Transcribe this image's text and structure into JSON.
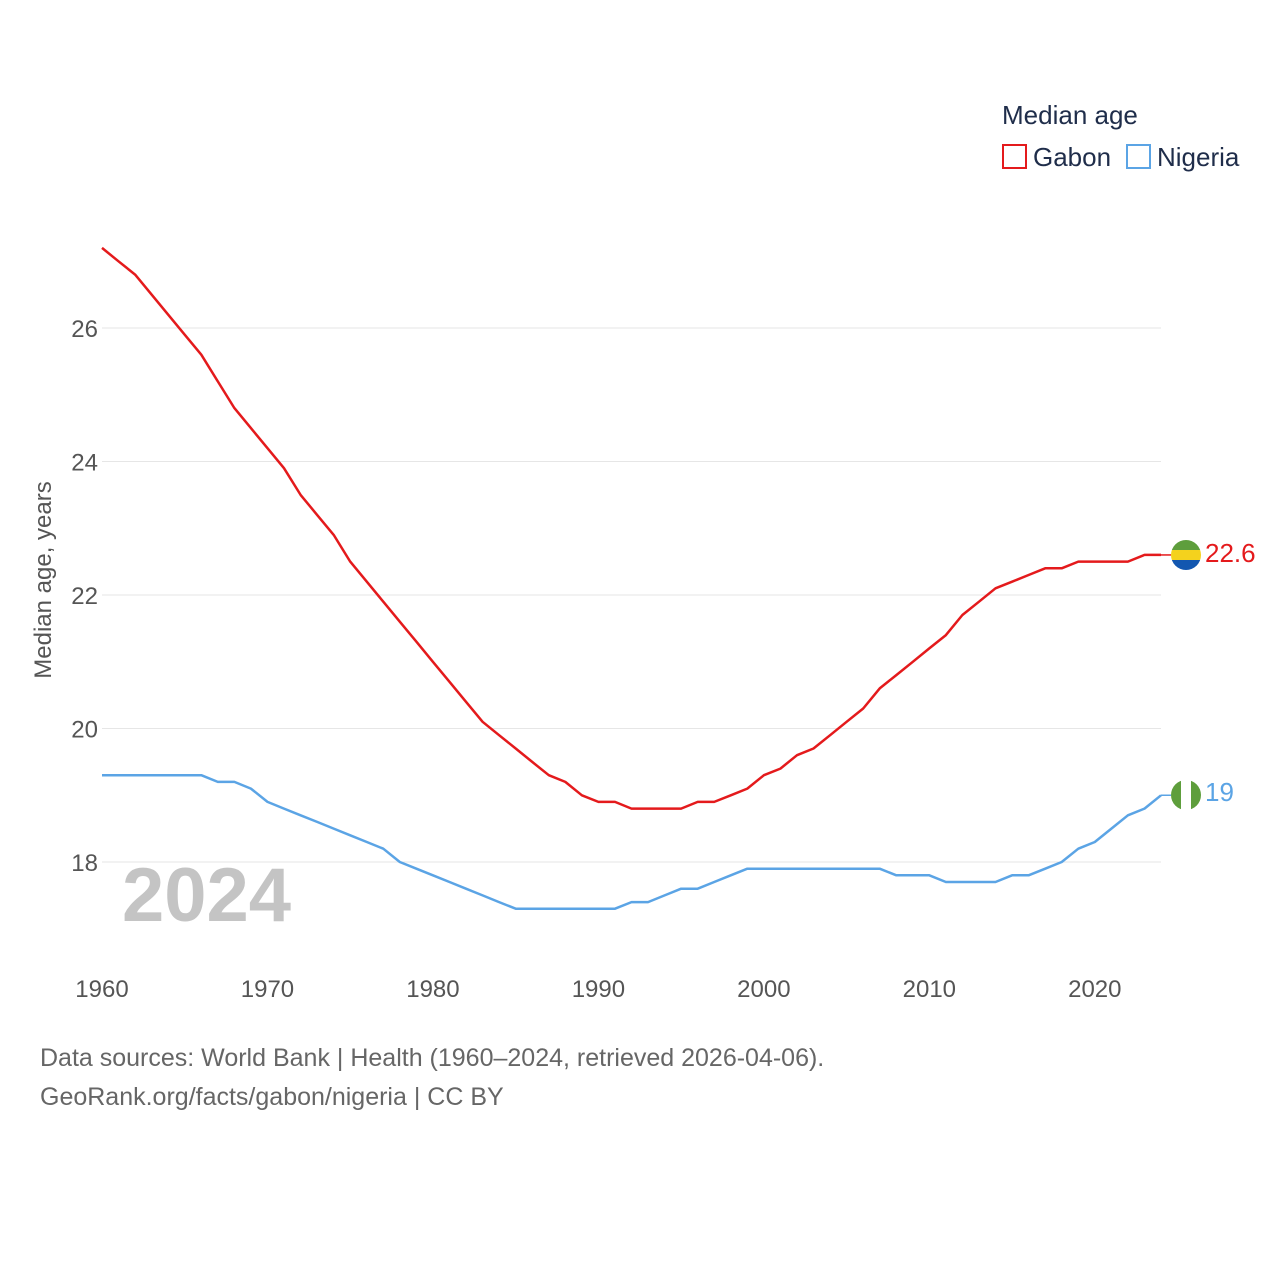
{
  "chart_data": {
    "type": "line",
    "title": "Median age",
    "ylabel": "Median age, years",
    "xlabel": "",
    "xlim": [
      1960,
      2024
    ],
    "ylim": [
      16.5,
      27.6
    ],
    "x_ticks": [
      1960,
      1970,
      1980,
      1990,
      2000,
      2010,
      2020
    ],
    "y_ticks": [
      18,
      20,
      22,
      24,
      26
    ],
    "grid": true,
    "legend_position": "top-right",
    "year_label": "2024",
    "x": [
      1960,
      1961,
      1962,
      1963,
      1964,
      1965,
      1966,
      1967,
      1968,
      1969,
      1970,
      1971,
      1972,
      1973,
      1974,
      1975,
      1976,
      1977,
      1978,
      1979,
      1980,
      1981,
      1982,
      1983,
      1984,
      1985,
      1986,
      1987,
      1988,
      1989,
      1990,
      1991,
      1992,
      1993,
      1994,
      1995,
      1996,
      1997,
      1998,
      1999,
      2000,
      2001,
      2002,
      2003,
      2004,
      2005,
      2006,
      2007,
      2008,
      2009,
      2010,
      2011,
      2012,
      2013,
      2014,
      2015,
      2016,
      2017,
      2018,
      2019,
      2020,
      2021,
      2022,
      2023,
      2024
    ],
    "series": [
      {
        "name": "Gabon",
        "color": "#e41a1c",
        "end_label": "22.6",
        "values": [
          27.2,
          27.0,
          26.8,
          26.5,
          26.2,
          25.9,
          25.6,
          25.2,
          24.8,
          24.5,
          24.2,
          23.9,
          23.5,
          23.2,
          22.9,
          22.5,
          22.2,
          21.9,
          21.6,
          21.3,
          21.0,
          20.7,
          20.4,
          20.1,
          19.9,
          19.7,
          19.5,
          19.3,
          19.2,
          19.0,
          18.9,
          18.9,
          18.8,
          18.8,
          18.8,
          18.8,
          18.9,
          18.9,
          19.0,
          19.1,
          19.3,
          19.4,
          19.6,
          19.7,
          19.9,
          20.1,
          20.3,
          20.6,
          20.8,
          21.0,
          21.2,
          21.4,
          21.7,
          21.9,
          22.1,
          22.2,
          22.3,
          22.4,
          22.4,
          22.5,
          22.5,
          22.5,
          22.5,
          22.6,
          22.6
        ]
      },
      {
        "name": "Nigeria",
        "color": "#5ba4e5",
        "end_label": "19",
        "values": [
          19.3,
          19.3,
          19.3,
          19.3,
          19.3,
          19.3,
          19.3,
          19.2,
          19.2,
          19.1,
          18.9,
          18.8,
          18.7,
          18.6,
          18.5,
          18.4,
          18.3,
          18.2,
          18.0,
          17.9,
          17.8,
          17.7,
          17.6,
          17.5,
          17.4,
          17.3,
          17.3,
          17.3,
          17.3,
          17.3,
          17.3,
          17.3,
          17.4,
          17.4,
          17.5,
          17.6,
          17.6,
          17.7,
          17.8,
          17.9,
          17.9,
          17.9,
          17.9,
          17.9,
          17.9,
          17.9,
          17.9,
          17.9,
          17.8,
          17.8,
          17.8,
          17.7,
          17.7,
          17.7,
          17.7,
          17.8,
          17.8,
          17.9,
          18.0,
          18.2,
          18.3,
          18.5,
          18.7,
          18.8,
          19.0
        ]
      }
    ]
  },
  "legend": {
    "title": "Median age",
    "items": [
      {
        "label": "Gabon",
        "color": "#e41a1c"
      },
      {
        "label": "Nigeria",
        "color": "#5ba4e5"
      }
    ]
  },
  "flags": {
    "gabon": {
      "top": "#5e9e3c",
      "middle": "#f4d21d",
      "bottom": "#1357b0"
    },
    "nigeria": {
      "sides": "#5e9e3c",
      "middle": "#ffffff"
    }
  },
  "footer": {
    "source": "Data sources: World Bank | Health (1960–2024, retrieved 2026-04-06).",
    "url": "GeoRank.org/facts/gabon/nigeria | CC BY"
  }
}
